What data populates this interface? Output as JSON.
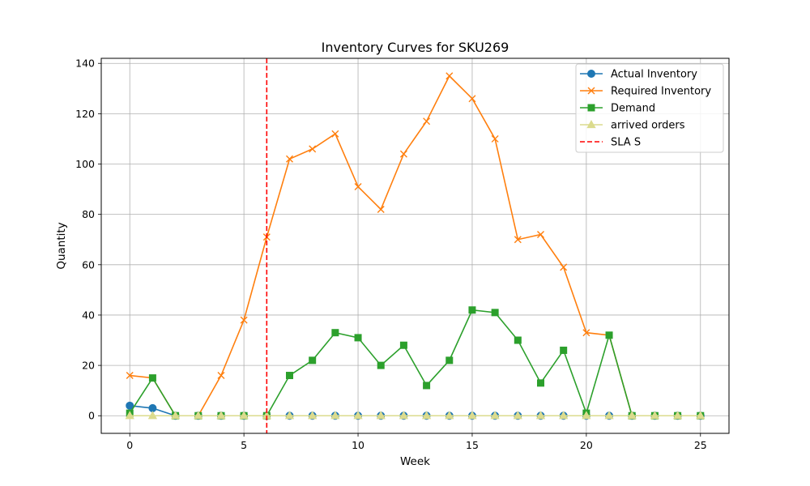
{
  "chart_data": {
    "type": "line",
    "title": "Inventory Curves for SKU269",
    "xlabel": "Week",
    "ylabel": "Quantity",
    "xlim": [
      -1.25,
      26.25
    ],
    "ylim": [
      -7,
      142
    ],
    "xticks": [
      0,
      5,
      10,
      15,
      20,
      25
    ],
    "yticks": [
      0,
      20,
      40,
      60,
      80,
      100,
      120,
      140
    ],
    "grid": true,
    "legend_position": "top-right",
    "series": [
      {
        "name": "Actual Inventory",
        "color": "#1f77b4",
        "marker": "circle",
        "x": [
          0,
          1,
          2,
          3,
          4,
          5,
          6,
          7,
          8,
          9,
          10,
          11,
          12,
          13,
          14,
          15,
          16,
          17,
          18,
          19,
          20,
          21,
          22,
          23,
          24,
          25
        ],
        "values": [
          4,
          3,
          0,
          0,
          0,
          0,
          0,
          0,
          0,
          0,
          0,
          0,
          0,
          0,
          0,
          0,
          0,
          0,
          0,
          0,
          0,
          0,
          0,
          0,
          0,
          0
        ]
      },
      {
        "name": "Required Inventory",
        "color": "#ff7f0e",
        "marker": "x",
        "x": [
          0,
          1,
          2,
          3,
          4,
          5,
          6,
          7,
          8,
          9,
          10,
          11,
          12,
          13,
          14,
          15,
          16,
          17,
          18,
          19,
          20,
          21,
          22,
          23,
          24,
          25
        ],
        "values": [
          16,
          15,
          0,
          0,
          16,
          38,
          71,
          102,
          106,
          112,
          91,
          82,
          104,
          117,
          135,
          126,
          110,
          70,
          72,
          59,
          33,
          32,
          0,
          0,
          0,
          0
        ]
      },
      {
        "name": "Demand",
        "color": "#2ca02c",
        "marker": "square",
        "x": [
          0,
          1,
          2,
          3,
          4,
          5,
          6,
          7,
          8,
          9,
          10,
          11,
          12,
          13,
          14,
          15,
          16,
          17,
          18,
          19,
          20,
          21,
          22,
          23,
          24,
          25
        ],
        "values": [
          1,
          15,
          0,
          0,
          0,
          0,
          0,
          16,
          22,
          33,
          31,
          20,
          28,
          12,
          22,
          42,
          41,
          30,
          13,
          26,
          1,
          32,
          0,
          0,
          0,
          0
        ]
      },
      {
        "name": "arrived orders",
        "color": "#dbdb8d",
        "marker": "triangle",
        "x": [
          0,
          1,
          2,
          3,
          4,
          5,
          6,
          7,
          8,
          9,
          10,
          11,
          12,
          13,
          14,
          15,
          16,
          17,
          18,
          19,
          20,
          21,
          22,
          23,
          24,
          25
        ],
        "values": [
          0,
          0,
          0,
          0,
          0,
          0,
          0,
          0,
          0,
          0,
          0,
          0,
          0,
          0,
          0,
          0,
          0,
          0,
          0,
          0,
          0,
          0,
          0,
          0,
          0,
          0
        ]
      }
    ],
    "vlines": [
      {
        "name": "SLA S",
        "x": 6,
        "color": "#ff0000",
        "style": "dashed"
      }
    ]
  }
}
